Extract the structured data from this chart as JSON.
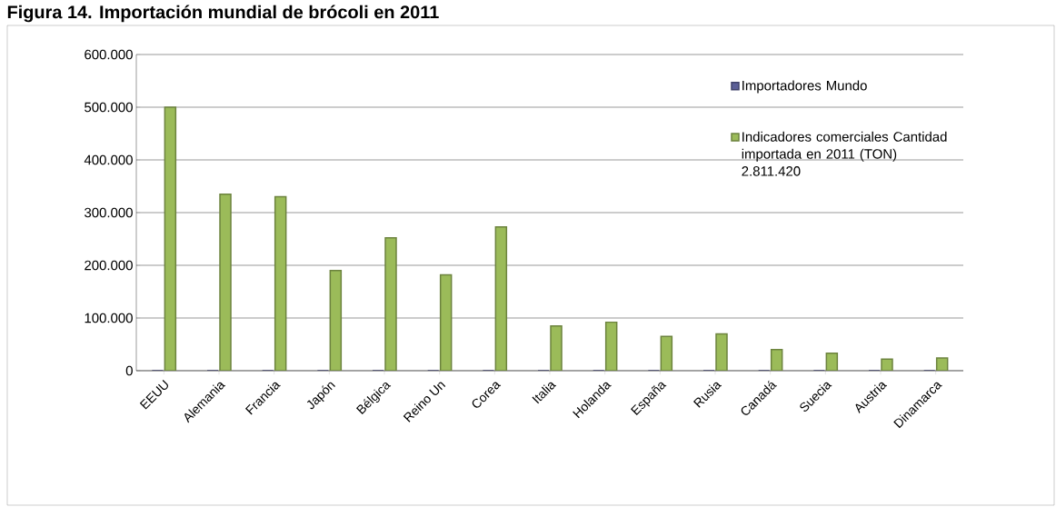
{
  "chart_data": {
    "type": "bar",
    "title": "Figura 14. Importación mundial de brócoli en 2011",
    "categories": [
      "EEUU",
      "Alemania",
      "Francia",
      "Japón",
      "Bélgica",
      "Reino Un",
      "Corea",
      "Italia",
      "Holanda",
      "España",
      "Rusia",
      "Canadá",
      "Suecia",
      "Austria",
      "Dinamarca"
    ],
    "series": [
      {
        "name": "Importadores Mundo",
        "color": "#5b5f97",
        "values": [
          0,
          0,
          0,
          0,
          0,
          0,
          0,
          0,
          0,
          0,
          0,
          0,
          0,
          0,
          0
        ]
      },
      {
        "name": "Indicadores comerciales Cantidad importada en 2011 (TON) 2.811.420",
        "color": "#9bbb59",
        "values": [
          500000,
          335000,
          330000,
          190000,
          252000,
          182000,
          273000,
          85000,
          92000,
          65000,
          70000,
          40000,
          33000,
          22000,
          24000
        ]
      }
    ],
    "ylim": [
      0,
      600000
    ],
    "yticks": [
      {
        "value": 0,
        "label": "0"
      },
      {
        "value": 100000,
        "label": "100.000"
      },
      {
        "value": 200000,
        "label": "200.000"
      },
      {
        "value": 300000,
        "label": "300.000"
      },
      {
        "value": 400000,
        "label": "400.000"
      },
      {
        "value": 500000,
        "label": "500.000"
      },
      {
        "value": 600000,
        "label": "600.000"
      }
    ],
    "grid": "y",
    "legend": "top right"
  }
}
